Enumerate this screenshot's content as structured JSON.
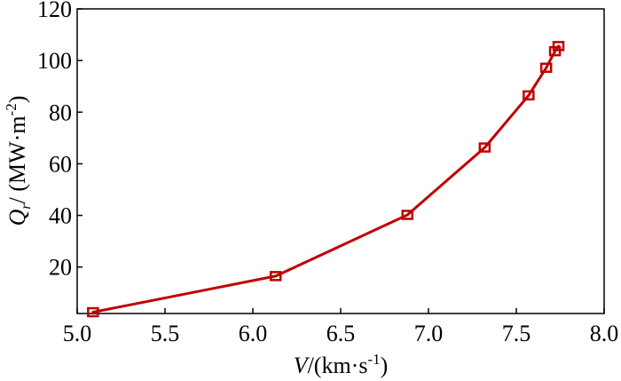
{
  "chart_data": {
    "type": "line",
    "title": "",
    "xlabel": {
      "symbol": "V",
      "prefix": "/(km·s",
      "exponent": "-1",
      "suffix": ")"
    },
    "ylabel": {
      "symbol": "Q",
      "subscript": "r",
      "prefix": "/ (MW·m",
      "exponent": "-2",
      "suffix": ")"
    },
    "xlim": [
      5.0,
      8.0
    ],
    "ylim": [
      2,
      120
    ],
    "x_ticks": [
      "5.0",
      "5.5",
      "6.0",
      "6.5",
      "7.0",
      "7.5",
      "8.0"
    ],
    "y_ticks": [
      "20",
      "40",
      "60",
      "80",
      "100",
      "120"
    ],
    "grid": false,
    "legend": "none",
    "series": [
      {
        "color": "#c00000",
        "marker": "square",
        "points": [
          {
            "x": 5.09,
            "y": 2.5
          },
          {
            "x": 6.13,
            "y": 16.5
          },
          {
            "x": 6.88,
            "y": 40.2
          },
          {
            "x": 7.32,
            "y": 66.3
          },
          {
            "x": 7.57,
            "y": 86.5
          },
          {
            "x": 7.67,
            "y": 97.2
          },
          {
            "x": 7.72,
            "y": 103.6
          },
          {
            "x": 7.74,
            "y": 105.6
          }
        ]
      }
    ]
  }
}
